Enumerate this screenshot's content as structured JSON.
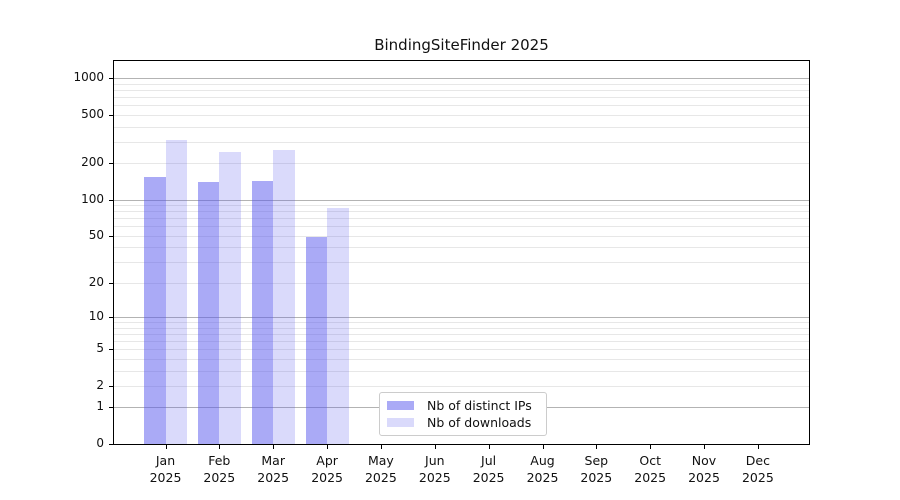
{
  "chart_data": {
    "type": "bar",
    "title": "BindingSiteFinder 2025",
    "x_tick_months": [
      "Jan",
      "Feb",
      "Mar",
      "Apr",
      "May",
      "Jun",
      "Jul",
      "Aug",
      "Sep",
      "Oct",
      "Nov",
      "Dec"
    ],
    "x_tick_year": "2025",
    "series": [
      {
        "name": "Nb of distinct IPs",
        "color": "rgba(85,85,238,0.5)",
        "values": [
          155,
          139,
          143,
          49,
          0,
          0,
          0,
          0,
          0,
          0,
          0,
          0
        ]
      },
      {
        "name": "Nb of downloads",
        "color": "rgba(85,85,238,0.22)",
        "values": [
          310,
          246,
          257,
          85,
          0,
          0,
          0,
          0,
          0,
          0,
          0,
          0
        ]
      }
    ],
    "yscale": "log1p",
    "ylim": [
      0,
      1430
    ],
    "y_tick_values": [
      0,
      1,
      2,
      5,
      10,
      20,
      50,
      100,
      200,
      500,
      1000
    ],
    "y_tick_labels": [
      "0",
      "1",
      "2",
      "5",
      "10",
      "20",
      "50",
      "100",
      "200",
      "500",
      "1000"
    ],
    "y_grid_major": [
      1,
      10,
      100,
      1000
    ],
    "y_grid_minor": [
      2,
      3,
      4,
      5,
      6,
      7,
      8,
      9,
      20,
      30,
      40,
      50,
      60,
      70,
      80,
      90,
      200,
      300,
      400,
      500,
      600,
      700,
      800,
      900
    ],
    "grid": true,
    "legend_position": "lower center"
  },
  "colors": {
    "bar_distinct_ips": "rgba(85,85,238,0.5)",
    "bar_downloads": "rgba(85,85,238,0.22)",
    "grid_major": "#b3b3b3",
    "grid_minor": "#e7e7e7",
    "axis": "#000000",
    "legend_border": "#cccccc",
    "text": "#111111"
  }
}
